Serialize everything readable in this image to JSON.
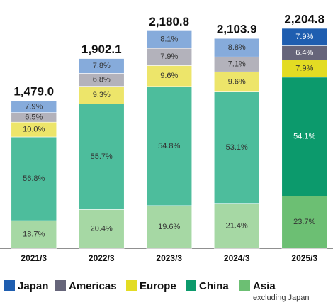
{
  "chart_data": {
    "type": "bar",
    "stacked": true,
    "categories": [
      "2021/3",
      "2022/3",
      "2023/3",
      "2024/3",
      "2025/3"
    ],
    "totals": {
      "values": [
        1479.0,
        1902.1,
        2180.8,
        2103.9,
        2204.8
      ],
      "value_labels": [
        "1,479.0",
        "1,902.1",
        "2,180.8",
        "2,103.9",
        "2,204.8"
      ]
    },
    "series": [
      {
        "name": "Asia",
        "name_note": "excluding Japan",
        "color": "#6cbf73",
        "colors": [
          "#a6d8a4",
          "#a6d8a4",
          "#a6d8a4",
          "#a6d8a4",
          "#6cbf73"
        ],
        "values": [
          18.7,
          20.4,
          19.6,
          21.4,
          23.7
        ],
        "value_labels": [
          "18.7%",
          "20.4%",
          "19.6%",
          "21.4%",
          "23.7%"
        ]
      },
      {
        "name": "China",
        "color": "#0c9a6c",
        "colors": [
          "#4dbd9c",
          "#4dbd9c",
          "#4dbd9c",
          "#4dbd9c",
          "#0c9a6c"
        ],
        "values": [
          56.8,
          55.7,
          54.8,
          53.1,
          54.1
        ],
        "value_labels": [
          "56.8%",
          "55.7%",
          "54.8%",
          "53.1%",
          "54.1%"
        ]
      },
      {
        "name": "Europe",
        "color": "#e3dc23",
        "colors": [
          "#ede56a",
          "#ede56a",
          "#ede56a",
          "#ede56a",
          "#e3dc23"
        ],
        "values": [
          10.0,
          9.3,
          9.6,
          9.6,
          7.9
        ],
        "value_labels": [
          "10.0%",
          "9.3%",
          "9.6%",
          "9.6%",
          "7.9%"
        ]
      },
      {
        "name": "Americas",
        "color": "#66657a",
        "colors": [
          "#b3b2bb",
          "#b3b2bb",
          "#b3b2bb",
          "#b3b2bb",
          "#66657a"
        ],
        "values": [
          6.5,
          6.8,
          7.9,
          7.1,
          6.4
        ],
        "value_labels": [
          "6.5%",
          "6.8%",
          "7.9%",
          "7.1%",
          "6.4%"
        ]
      },
      {
        "name": "Japan",
        "color": "#1f5eb0",
        "colors": [
          "#86abdb",
          "#86abdb",
          "#86abdb",
          "#86abdb",
          "#1f5eb0"
        ],
        "values": [
          7.9,
          7.8,
          8.1,
          8.8,
          7.9
        ],
        "value_labels": [
          "7.9%",
          "7.8%",
          "8.1%",
          "8.8%",
          "7.9%"
        ]
      }
    ]
  }
}
